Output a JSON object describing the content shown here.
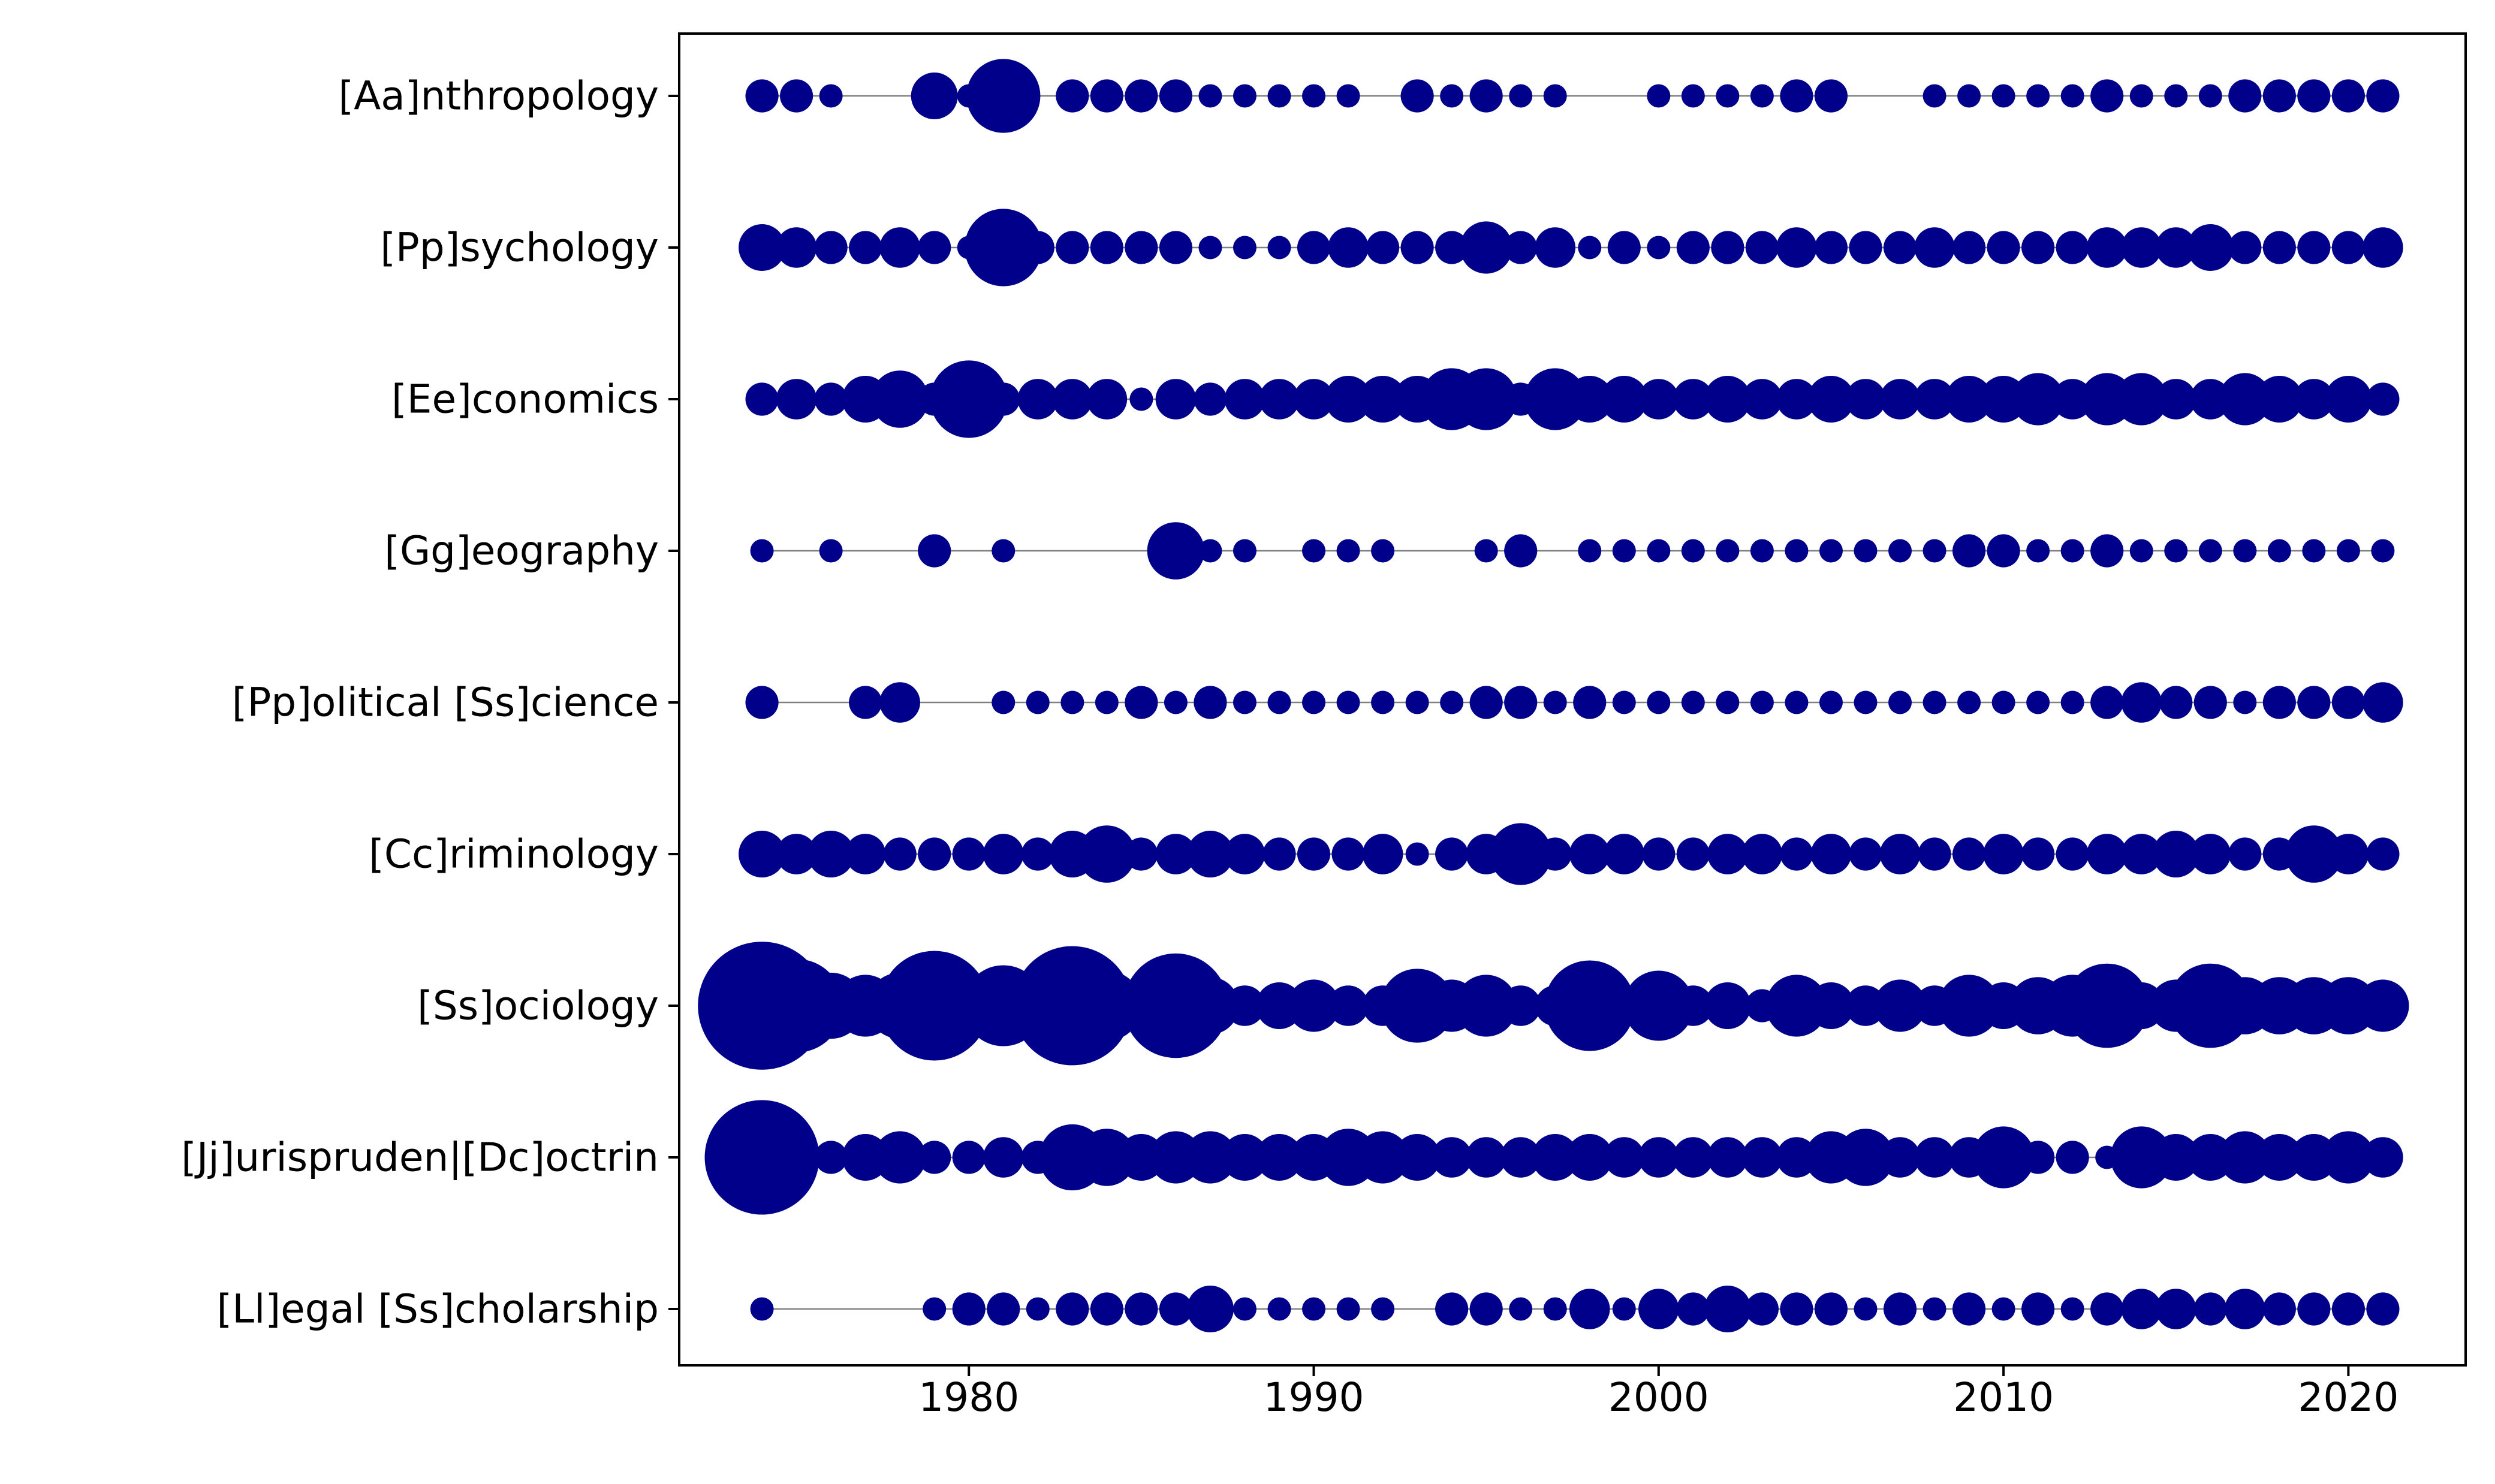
{
  "chart_data": {
    "type": "scatter",
    "title": "",
    "xlabel": "",
    "ylabel": "",
    "xlim": [
      1971.6,
      2023.4
    ],
    "xticks": [
      1980,
      1990,
      2000,
      2010,
      2020
    ],
    "x_tick_labels": [
      "1980",
      "1990",
      "2000",
      "2010",
      "2020"
    ],
    "grid": false,
    "legend": "none",
    "marker_color": "#00008b",
    "line_color": "#808080",
    "x": [
      1974,
      1975,
      1976,
      1977,
      1978,
      1979,
      1980,
      1981,
      1982,
      1983,
      1984,
      1985,
      1986,
      1987,
      1988,
      1989,
      1990,
      1991,
      1992,
      1993,
      1994,
      1995,
      1996,
      1997,
      1998,
      1999,
      2000,
      2001,
      2002,
      2003,
      2004,
      2005,
      2006,
      2007,
      2008,
      2009,
      2010,
      2011,
      2012,
      2013,
      2014,
      2015,
      2016,
      2017,
      2018,
      2019,
      2020,
      2021
    ],
    "series": [
      {
        "name": "[Aa]nthropology",
        "sizes": [
          2,
          2,
          1,
          0,
          0,
          4,
          1,
          10,
          0,
          2,
          2,
          2,
          2,
          1,
          1,
          1,
          1,
          1,
          0,
          2,
          1,
          2,
          1,
          1,
          0,
          0,
          1,
          1,
          1,
          1,
          2,
          2,
          0,
          0,
          1,
          1,
          1,
          1,
          1,
          2,
          1,
          1,
          1,
          2,
          2,
          2,
          2,
          2
        ]
      },
      {
        "name": "[Pp]sychology",
        "sizes": [
          4,
          3,
          2,
          2,
          3,
          2,
          1,
          11,
          2,
          2,
          2,
          2,
          2,
          1,
          1,
          1,
          2,
          3,
          2,
          2,
          2,
          5,
          2,
          3,
          1,
          2,
          1,
          2,
          2,
          2,
          3,
          2,
          2,
          2,
          3,
          2,
          2,
          2,
          2,
          3,
          3,
          3,
          4,
          2,
          2,
          2,
          2,
          3
        ]
      },
      {
        "name": "[Ee]conomics",
        "sizes": [
          2,
          3,
          2,
          4,
          6,
          2,
          11,
          2,
          3,
          3,
          3,
          1,
          3,
          2,
          3,
          3,
          3,
          4,
          4,
          4,
          7,
          7,
          2,
          7,
          4,
          4,
          3,
          3,
          4,
          3,
          3,
          4,
          3,
          3,
          3,
          4,
          4,
          5,
          3,
          5,
          5,
          3,
          3,
          5,
          4,
          3,
          4,
          2
        ]
      },
      {
        "name": "[Gg]eography",
        "sizes": [
          1,
          0,
          1,
          0,
          0,
          2,
          0,
          1,
          0,
          0,
          0,
          0,
          6,
          1,
          1,
          0,
          1,
          1,
          1,
          0,
          0,
          1,
          2,
          0,
          1,
          1,
          1,
          1,
          1,
          1,
          1,
          1,
          1,
          1,
          1,
          2,
          2,
          1,
          1,
          2,
          1,
          1,
          1,
          1,
          1,
          1,
          1,
          1
        ]
      },
      {
        "name": "[Pp]olitical [Ss]cience",
        "sizes": [
          2,
          0,
          0,
          2,
          3,
          0,
          0,
          1,
          1,
          1,
          1,
          2,
          1,
          2,
          1,
          1,
          1,
          1,
          1,
          1,
          1,
          2,
          2,
          1,
          2,
          1,
          1,
          1,
          1,
          1,
          1,
          1,
          1,
          1,
          1,
          1,
          1,
          1,
          1,
          2,
          3,
          2,
          2,
          1,
          2,
          2,
          2,
          3
        ]
      },
      {
        "name": "[Cc]riminology",
        "sizes": [
          4,
          3,
          4,
          3,
          2,
          2,
          2,
          3,
          2,
          4,
          6,
          2,
          3,
          4,
          3,
          2,
          2,
          2,
          3,
          1,
          2,
          3,
          7,
          2,
          3,
          3,
          2,
          2,
          3,
          3,
          2,
          3,
          2,
          3,
          2,
          2,
          3,
          2,
          2,
          3,
          3,
          4,
          3,
          2,
          2,
          6,
          3,
          2
        ]
      },
      {
        "name": "[Ss]ociology",
        "sizes": [
          30,
          16,
          8,
          7,
          8,
          22,
          8,
          12,
          5,
          26,
          9,
          3,
          20,
          6,
          3,
          4,
          5,
          3,
          3,
          10,
          5,
          7,
          3,
          3,
          15,
          2,
          9,
          3,
          4,
          2,
          7,
          4,
          3,
          5,
          3,
          7,
          4,
          6,
          7,
          13,
          4,
          5,
          13,
          6,
          6,
          6,
          6,
          5
        ]
      },
      {
        "name": "[Jj]urispruden|[Dc]octrin",
        "sizes": [
          24,
          1,
          2,
          4,
          5,
          2,
          2,
          3,
          2,
          8,
          6,
          4,
          5,
          5,
          4,
          4,
          4,
          6,
          5,
          4,
          3,
          3,
          3,
          4,
          4,
          3,
          3,
          3,
          3,
          3,
          3,
          5,
          6,
          3,
          3,
          3,
          7,
          2,
          2,
          1,
          7,
          4,
          4,
          5,
          4,
          4,
          5,
          3
        ]
      },
      {
        "name": "[Ll]egal [Ss]cholarship",
        "sizes": [
          1,
          0,
          0,
          0,
          0,
          1,
          2,
          2,
          1,
          2,
          2,
          2,
          2,
          4,
          1,
          1,
          1,
          1,
          1,
          0,
          2,
          2,
          1,
          1,
          3,
          1,
          3,
          2,
          4,
          2,
          2,
          2,
          1,
          2,
          1,
          2,
          1,
          2,
          1,
          2,
          3,
          3,
          2,
          3,
          2,
          2,
          2,
          2
        ]
      }
    ]
  }
}
